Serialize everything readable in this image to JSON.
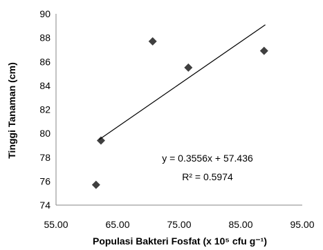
{
  "chart_data": {
    "type": "scatter",
    "title": "",
    "xlabel": "Populasi  Bakteri Fosfat (x 10⁵ cfu g⁻¹)",
    "ylabel": "Tinggi Tanaman (cm)",
    "xlim": [
      55,
      95
    ],
    "ylim": [
      74,
      90
    ],
    "x_ticks": [
      "55.00",
      "65.00",
      "75.00",
      "85.00",
      "95.00"
    ],
    "y_ticks": [
      "74",
      "76",
      "78",
      "80",
      "82",
      "84",
      "86",
      "88",
      "90"
    ],
    "grid": false,
    "legend": "none",
    "marker": "diamond",
    "marker_color": "#3f3f3f",
    "trendline_color": "#000000",
    "points": [
      {
        "x": 61.5,
        "y": 75.7
      },
      {
        "x": 62.3,
        "y": 79.4
      },
      {
        "x": 70.7,
        "y": 87.7
      },
      {
        "x": 76.5,
        "y": 85.5
      },
      {
        "x": 88.8,
        "y": 86.9
      }
    ],
    "trendline": {
      "slope": 0.3556,
      "intercept": 57.436,
      "x_from": 62,
      "x_to": 89
    },
    "equation": "y = 0.3556x + 57.436",
    "r_squared": "R² = 0.5974"
  }
}
